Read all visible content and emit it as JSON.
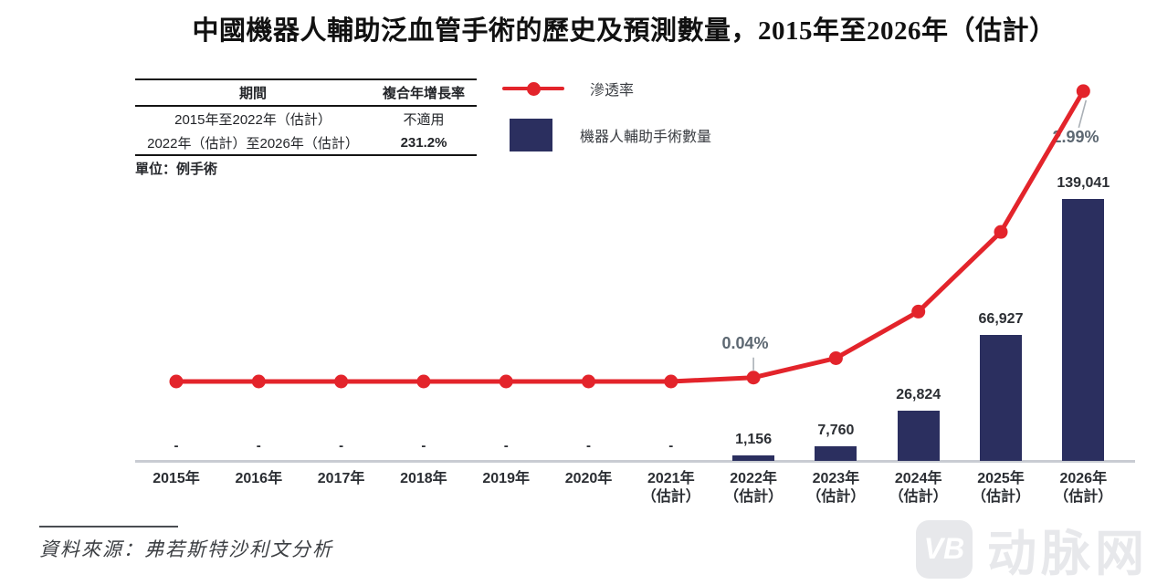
{
  "colors": {
    "red": "#e3242b",
    "navy": "#2b2f5f",
    "axis": "#c9ccd3",
    "callout": "#aab0b6",
    "pct_text": "#5d6872"
  },
  "title": "中國機器人輔助泛血管手術的歷史及預測數量，2015年至2026年（估計）",
  "cagr_table": {
    "headers": [
      "期間",
      "複合年增長率"
    ],
    "rows": [
      [
        "2015年至2022年（估計）",
        "不適用"
      ],
      [
        "2022年（估計）至2026年（估計）",
        "231.2%"
      ]
    ]
  },
  "unit_label": "單位：例手術",
  "annotations": {
    "pct_2022": "0.04%",
    "pct_2026": "2.99%"
  },
  "source": "資料來源：弗若斯特沙利文分析",
  "watermark": {
    "logo": "VB",
    "name": "动脉网"
  },
  "chart_data": {
    "type": "combo bar + line",
    "title": "中國機器人輔助泛血管手術的歷史及預測數量，2015年至2026年（估計）",
    "unit": "例手術",
    "gridlines": false,
    "legend_position": "top-center",
    "categories": [
      "2015年",
      "2016年",
      "2017年",
      "2018年",
      "2019年",
      "2020年",
      "2021年\n（估計）",
      "2022年\n（估計）",
      "2023年\n（估計）",
      "2024年\n（估計）",
      "2025年\n（估計）",
      "2026年\n（估計）"
    ],
    "cagr": {
      "2015-2022E": "不適用",
      "2022E-2026E": "231.2%"
    },
    "series": [
      {
        "name": "機器人輔助手術數量",
        "type": "bar",
        "color": "#2b2f5f",
        "values": [
          null,
          null,
          null,
          null,
          null,
          null,
          null,
          1156,
          7760,
          26824,
          66927,
          139041
        ],
        "value_labels": [
          "-",
          "-",
          "-",
          "-",
          "-",
          "-",
          "-",
          "1,156",
          "7,760",
          "26,824",
          "66,927",
          "139,041"
        ]
      },
      {
        "name": "滲透率",
        "type": "line",
        "color": "#e3242b",
        "values_percent_estimated": [
          0,
          0,
          0,
          0,
          0,
          0,
          0,
          0.04,
          0.24,
          0.72,
          1.54,
          2.99
        ],
        "labeled_values": {
          "2022年（估計）": "0.04%",
          "2026年（估計）": "2.99%"
        }
      }
    ]
  }
}
